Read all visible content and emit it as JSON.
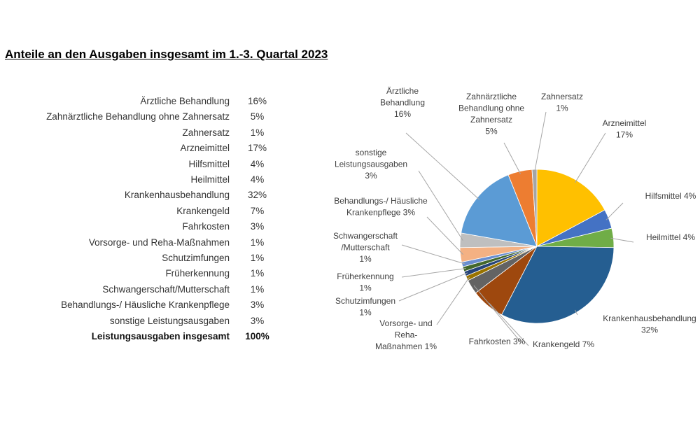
{
  "title": "Anteile an den Ausgaben insgesamt im 1.-3. Quartal 2023",
  "table": {
    "rows": [
      {
        "label": "Ärztliche Behandlung",
        "value": "16%"
      },
      {
        "label": "Zahnärztliche Behandlung ohne Zahnersatz",
        "value": "5%"
      },
      {
        "label": "Zahnersatz",
        "value": "1%"
      },
      {
        "label": "Arzneimittel",
        "value": "17%"
      },
      {
        "label": "Hilfsmittel",
        "value": "4%"
      },
      {
        "label": "Heilmittel",
        "value": "4%"
      },
      {
        "label": "Krankenhausbehandlung",
        "value": "32%"
      },
      {
        "label": "Krankengeld",
        "value": "7%"
      },
      {
        "label": "Fahrkosten",
        "value": "3%"
      },
      {
        "label": "Vorsorge- und Reha-Maßnahmen",
        "value": "1%"
      },
      {
        "label": "Schutzimfungen",
        "value": "1%"
      },
      {
        "label": "Früherkennung",
        "value": "1%"
      },
      {
        "label": "Schwangerschaft/Mutterschaft",
        "value": "1%"
      },
      {
        "label": "Behandlungs-/ Häusliche Krankenpflege",
        "value": "3%"
      },
      {
        "label": "sonstige Leistungsausgaben",
        "value": "3%"
      }
    ],
    "total": {
      "label": "Leistungsausgaben insgesamt",
      "value": "100%"
    }
  },
  "chart_data": {
    "type": "pie",
    "title": "",
    "start": "12 o'clock, clockwise",
    "slices": [
      {
        "name": "Arzneimittel",
        "value": 17,
        "label_lines": [
          "Arzneimittel",
          "17%"
        ],
        "color": "#FFC000"
      },
      {
        "name": "Hilfsmittel",
        "value": 4,
        "label_lines": [
          "Hilfsmittel 4%"
        ],
        "color": "#4472C4"
      },
      {
        "name": "Heilmittel",
        "value": 4,
        "label_lines": [
          "Heilmittel 4%"
        ],
        "color": "#70AD47"
      },
      {
        "name": "Krankenhausbehandlung",
        "value": 32,
        "label_lines": [
          "Krankenhausbehandlung",
          "32%"
        ],
        "color": "#255E91"
      },
      {
        "name": "Krankengeld",
        "value": 7,
        "label_lines": [
          "Krankengeld 7%"
        ],
        "color": "#9E480E"
      },
      {
        "name": "Fahrkosten",
        "value": 3,
        "label_lines": [
          "Fahrkosten 3%"
        ],
        "color": "#636363"
      },
      {
        "name": "Vorsorge- und Reha-Maßnahmen",
        "value": 1,
        "label_lines": [
          "Vorsorge- und",
          "Reha-",
          "Maßnahmen 1%"
        ],
        "color": "#997300"
      },
      {
        "name": "Schutzimfungen",
        "value": 1,
        "label_lines": [
          "Schutzimfungen",
          "1%"
        ],
        "color": "#264478"
      },
      {
        "name": "Früherkennung",
        "value": 1,
        "label_lines": [
          "Früherkennung",
          "1%"
        ],
        "color": "#43682B"
      },
      {
        "name": "Schwangerschaft/Mutterschaft",
        "value": 1,
        "label_lines": [
          "Schwangerschaft",
          "/Mutterschaft",
          "1%"
        ],
        "color": "#698ED0"
      },
      {
        "name": "Behandlungs-/ Häusliche Krankenpflege",
        "value": 3,
        "label_lines": [
          "Behandlungs-/ Häusliche",
          "Krankenpflege 3%"
        ],
        "color": "#F4B183"
      },
      {
        "name": "sonstige Leistungsausgaben",
        "value": 3,
        "label_lines": [
          "sonstige",
          "Leistungsausgaben",
          "3%"
        ],
        "color": "#BFBFBF"
      },
      {
        "name": "Ärztliche Behandlung",
        "value": 16,
        "label_lines": [
          "Ärztliche",
          "Behandlung",
          "16%"
        ],
        "color": "#5B9BD5"
      },
      {
        "name": "Zahnärztliche Behandlung ohne Zahnersatz",
        "value": 5,
        "label_lines": [
          "Zahnärztliche",
          "Behandlung ohne",
          "Zahnersatz",
          "5%"
        ],
        "color": "#ED7D31"
      },
      {
        "name": "Zahnersatz",
        "value": 1,
        "label_lines": [
          "Zahnersatz",
          "1%"
        ],
        "color": "#A5A5A5"
      }
    ]
  }
}
